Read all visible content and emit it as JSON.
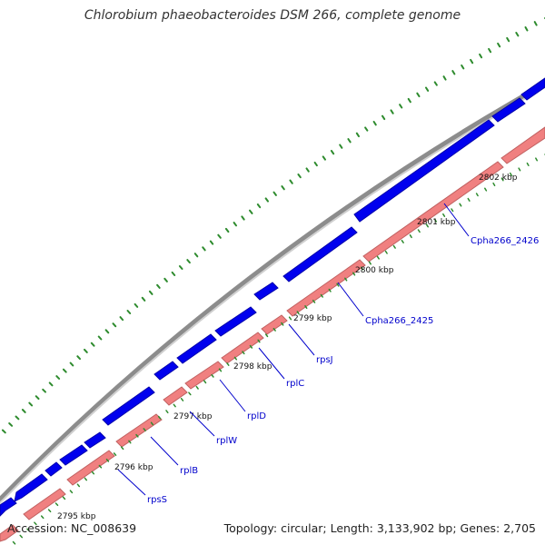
{
  "title": "Chlorobium phaeobacteroides DSM 266, complete genome",
  "footer": {
    "accession": "Accession: NC_008639",
    "topology": "Topology: circular; Length: 3,133,902 bp; Genes: 2,705"
  },
  "colors": {
    "backbone": "#8c8c8c",
    "forward_strand": "#0000ee",
    "reverse_strand": "#f08080",
    "reverse_strand_edge": "#c06060",
    "tick": "#2e8b2e",
    "tick_label": "#111111",
    "gene_label": "#0000cc"
  },
  "tick_labels": [
    {
      "label": "2795 kbp"
    },
    {
      "label": "2796 kbp"
    },
    {
      "label": "2797 kbp"
    },
    {
      "label": "2798 kbp"
    },
    {
      "label": "2799 kbp"
    },
    {
      "label": "2800 kbp"
    },
    {
      "label": "2801 kbp"
    },
    {
      "label": "2802 kbp"
    }
  ],
  "gene_labels": [
    {
      "label": "rpsS"
    },
    {
      "label": "rplB"
    },
    {
      "label": "rplW"
    },
    {
      "label": "rplD"
    },
    {
      "label": "rplC"
    },
    {
      "label": "rpsJ"
    },
    {
      "label": "Cpha266_2425"
    },
    {
      "label": "Cpha266_2426"
    }
  ]
}
